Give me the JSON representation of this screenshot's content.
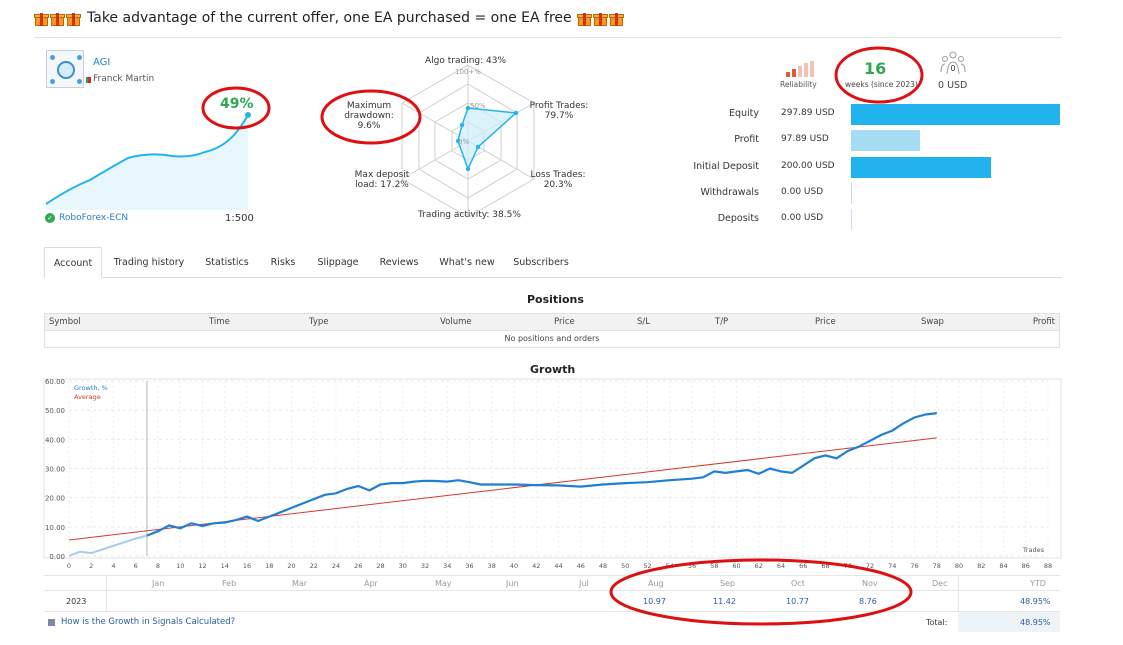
{
  "promo": {
    "text": "Take advantage of the current offer, one EA purchased = one EA free"
  },
  "account": {
    "name": "AGI",
    "author": "Franck Martin",
    "growth": "49%",
    "broker": "RoboForex-ECN",
    "leverage": "1:500"
  },
  "radar": {
    "algo": "Algo trading: 43%",
    "scale_top": "100+%",
    "scale_mid": "50%",
    "scale_zero": "0%",
    "drawdown_line1": "Maximum",
    "drawdown_line2": "drawdown: 9.6%",
    "profit_line1": "Profit Trades:",
    "profit_line2": "79.7%",
    "deposit_line1": "Max deposit",
    "deposit_line2": "load: 17.2%",
    "loss_line1": "Loss Trades:",
    "loss_line2": "20.3%",
    "activity": "Trading activity: 38.5%"
  },
  "reliability": {
    "label": "Reliability"
  },
  "weeks": {
    "value": "16",
    "label": "weeks (since 2023)"
  },
  "subscribers_usd": "0 USD",
  "subscriber_count": "0",
  "stats": [
    {
      "label": "Equity",
      "value": "297.89 USD",
      "fill": 1.0
    },
    {
      "label": "Profit",
      "value": "97.89 USD",
      "fill": 0.33
    },
    {
      "label": "Initial Deposit",
      "value": "200.00 USD",
      "fill": 0.67
    },
    {
      "label": "Withdrawals",
      "value": "0.00 USD",
      "fill": 0
    },
    {
      "label": "Deposits",
      "value": "0.00 USD",
      "fill": 0
    }
  ],
  "colors": {
    "accent": "#22b3ef",
    "light_accent": "#a6ddf5",
    "growth_line": "#1f7fd3",
    "average_line": "#d23b2e",
    "positive": "#2fa84f",
    "annotation": "#dd1111"
  },
  "tabs": [
    "Account",
    "Trading history",
    "Statistics",
    "Risks",
    "Slippage",
    "Reviews",
    "What's new",
    "Subscribers"
  ],
  "positions": {
    "title": "Positions",
    "columns": [
      "Symbol",
      "Time",
      "Type",
      "Volume",
      "Price",
      "S/L",
      "T/P",
      "Price",
      "Swap",
      "Profit"
    ],
    "empty": "No positions and orders"
  },
  "growth": {
    "title": "Growth",
    "trades_label": "Trades",
    "legend_growth": "Growth, %",
    "legend_average": "Average",
    "months": [
      "Jan",
      "Feb",
      "Mar",
      "Apr",
      "May",
      "Jun",
      "Jul",
      "Aug",
      "Sep",
      "Oct",
      "Nov",
      "Dec"
    ],
    "ytd_label": "YTD",
    "year": "2023",
    "month_values": {
      "Aug": "10.97",
      "Sep": "11.42",
      "Oct": "10.77",
      "Nov": "8.76"
    },
    "ytd_value": "48.95%",
    "total_label": "Total:",
    "total_value": "48.95%",
    "how_link": "How is the Growth in Signals Calculated?"
  },
  "chart_data": {
    "type": "line",
    "title": "Growth",
    "xlabel": "Trades",
    "ylabel": "",
    "xlim": [
      0,
      88
    ],
    "ylim": [
      0,
      60
    ],
    "xticks": [
      0,
      2,
      4,
      6,
      8,
      10,
      12,
      14,
      16,
      18,
      20,
      22,
      24,
      26,
      28,
      30,
      32,
      34,
      36,
      38,
      40,
      42,
      44,
      46,
      48,
      50,
      52,
      54,
      56,
      58,
      60,
      62,
      64,
      66,
      68,
      70,
      72,
      74,
      76,
      78,
      80,
      82,
      84,
      86,
      88
    ],
    "yticks": [
      "0.00",
      "10.00",
      "20.00",
      "30.00",
      "40.00",
      "50.00",
      "60.00"
    ],
    "series": [
      {
        "name": "Growth, %",
        "x": [
          0,
          1,
          2,
          4,
          6,
          7,
          8,
          9,
          10,
          11,
          12,
          13,
          14,
          15,
          16,
          17,
          18,
          19,
          20,
          21,
          22,
          23,
          24,
          25,
          26,
          27,
          28,
          29,
          30,
          31,
          32,
          33,
          34,
          35,
          36,
          37,
          38,
          40,
          42,
          44,
          46,
          48,
          50,
          52,
          54,
          56,
          57,
          58,
          59,
          60,
          61,
          62,
          63,
          64,
          65,
          66,
          67,
          68,
          69,
          70,
          71,
          72,
          73,
          74,
          75,
          76,
          77,
          78
        ],
        "y": [
          0,
          1.5,
          1,
          3.5,
          6,
          7,
          8.5,
          10.5,
          9.5,
          11.2,
          10.3,
          11.2,
          11.5,
          12.3,
          13.5,
          12,
          13.5,
          15,
          16.5,
          18,
          19.5,
          21,
          21.5,
          23,
          24,
          22.5,
          24.5,
          25,
          25,
          25.5,
          25.8,
          25.7,
          25.5,
          26,
          25.3,
          24.5,
          24.5,
          24.5,
          24.3,
          24.2,
          23.8,
          24.5,
          25,
          25.3,
          26,
          26.5,
          27,
          29,
          28.5,
          29,
          29.5,
          28.2,
          30,
          29,
          28.5,
          31,
          33.5,
          34.5,
          33.5,
          36,
          37.5,
          39.5,
          41.5,
          43,
          45.5,
          47.5,
          48.5,
          49
        ]
      },
      {
        "name": "Average",
        "x": [
          0,
          78
        ],
        "y": [
          5.5,
          40.5
        ]
      }
    ]
  }
}
